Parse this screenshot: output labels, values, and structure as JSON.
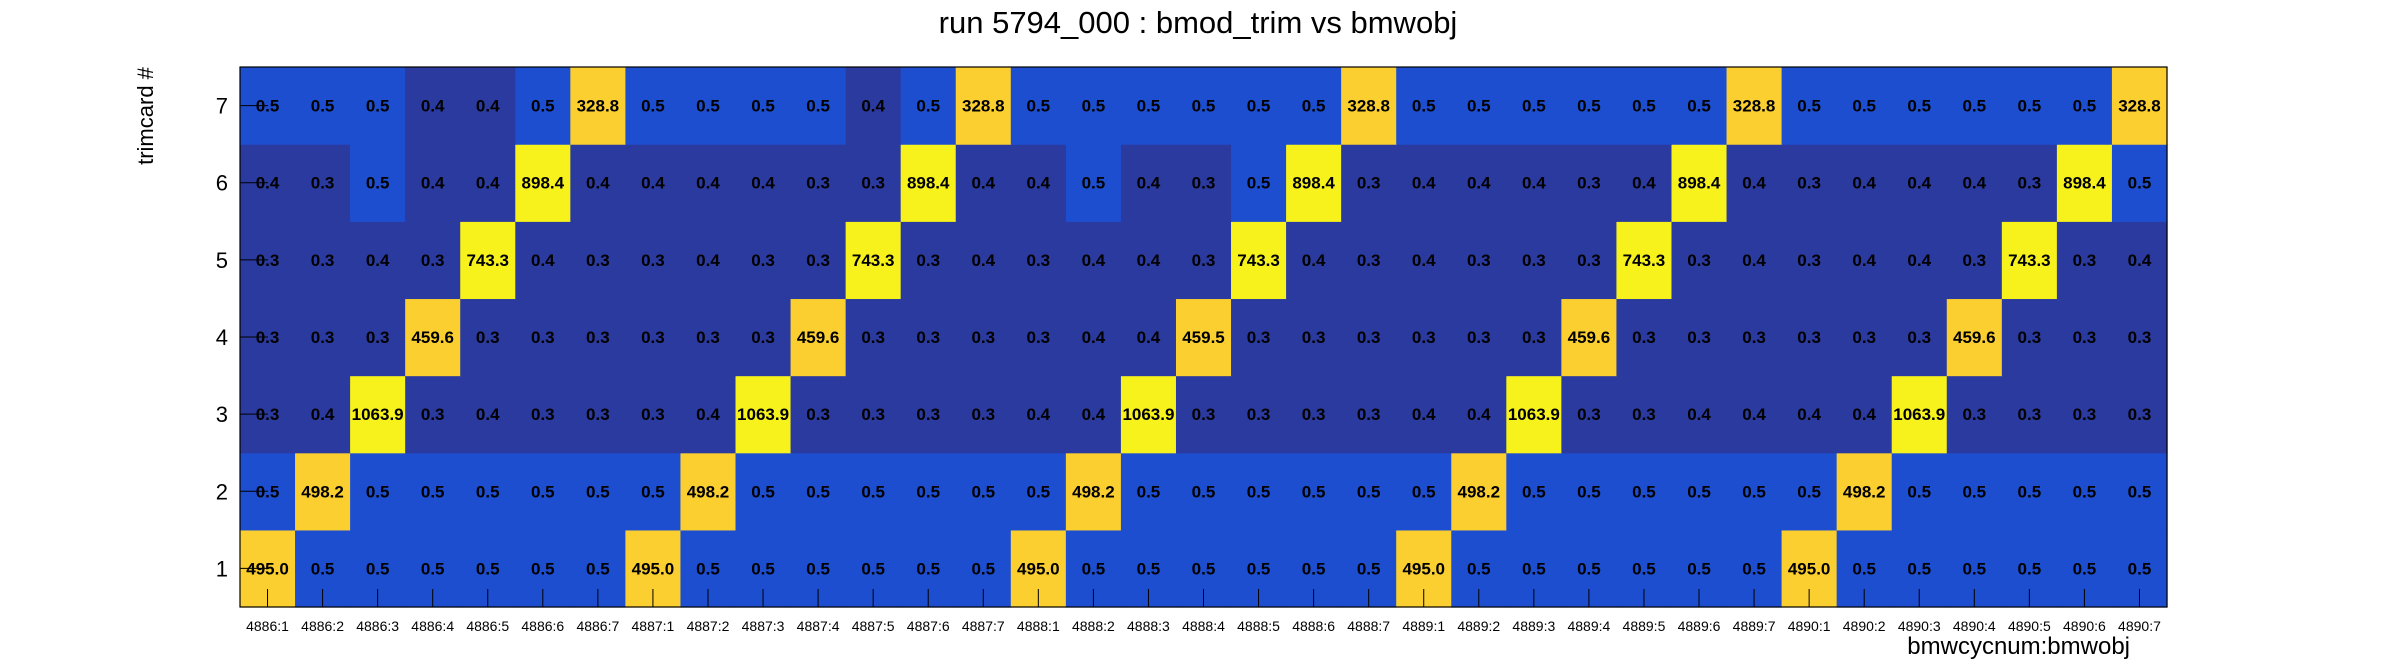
{
  "chart_data": {
    "type": "heatmap",
    "title": "run 5794_000 : bmod_trim vs bmwobj",
    "xlabel": "bmwcycnum:bmwobj",
    "ylabel": "trimcard #",
    "x_categories": [
      "4886:1",
      "4886:2",
      "4886:3",
      "4886:4",
      "4886:5",
      "4886:6",
      "4886:7",
      "4887:1",
      "4887:2",
      "4887:3",
      "4887:4",
      "4887:5",
      "4887:6",
      "4887:7",
      "4888:1",
      "4888:2",
      "4888:3",
      "4888:4",
      "4888:5",
      "4888:6",
      "4888:7",
      "4889:1",
      "4889:2",
      "4889:3",
      "4889:4",
      "4889:5",
      "4889:6",
      "4889:7",
      "4890:1",
      "4890:2",
      "4890:3",
      "4890:4",
      "4890:5",
      "4890:6",
      "4890:7"
    ],
    "y_categories": [
      "1",
      "2",
      "3",
      "4",
      "5",
      "6",
      "7"
    ],
    "values": [
      [
        "495.0",
        "0.5",
        "0.5",
        "0.5",
        "0.5",
        "0.5",
        "0.5",
        "495.0",
        "0.5",
        "0.5",
        "0.5",
        "0.5",
        "0.5",
        "0.5",
        "495.0",
        "0.5",
        "0.5",
        "0.5",
        "0.5",
        "0.5",
        "0.5",
        "495.0",
        "0.5",
        "0.5",
        "0.5",
        "0.5",
        "0.5",
        "0.5",
        "495.0",
        "0.5",
        "0.5",
        "0.5",
        "0.5",
        "0.5",
        "0.5"
      ],
      [
        "0.5",
        "498.2",
        "0.5",
        "0.5",
        "0.5",
        "0.5",
        "0.5",
        "0.5",
        "498.2",
        "0.5",
        "0.5",
        "0.5",
        "0.5",
        "0.5",
        "0.5",
        "498.2",
        "0.5",
        "0.5",
        "0.5",
        "0.5",
        "0.5",
        "0.5",
        "498.2",
        "0.5",
        "0.5",
        "0.5",
        "0.5",
        "0.5",
        "0.5",
        "498.2",
        "0.5",
        "0.5",
        "0.5",
        "0.5",
        "0.5"
      ],
      [
        "0.3",
        "0.4",
        "1063.9",
        "0.3",
        "0.4",
        "0.3",
        "0.3",
        "0.3",
        "0.4",
        "1063.9",
        "0.3",
        "0.3",
        "0.3",
        "0.3",
        "0.4",
        "0.4",
        "1063.9",
        "0.3",
        "0.3",
        "0.3",
        "0.3",
        "0.4",
        "0.4",
        "1063.9",
        "0.3",
        "0.3",
        "0.4",
        "0.4",
        "0.4",
        "0.4",
        "1063.9",
        "0.3",
        "0.3",
        "0.3",
        "0.3"
      ],
      [
        "0.3",
        "0.3",
        "0.3",
        "459.6",
        "0.3",
        "0.3",
        "0.3",
        "0.3",
        "0.3",
        "0.3",
        "459.6",
        "0.3",
        "0.3",
        "0.3",
        "0.3",
        "0.4",
        "0.4",
        "459.5",
        "0.3",
        "0.3",
        "0.3",
        "0.3",
        "0.3",
        "0.3",
        "459.6",
        "0.3",
        "0.3",
        "0.3",
        "0.3",
        "0.3",
        "0.3",
        "459.6",
        "0.3",
        "0.3",
        "0.3"
      ],
      [
        "0.3",
        "0.3",
        "0.4",
        "0.3",
        "743.3",
        "0.4",
        "0.3",
        "0.3",
        "0.4",
        "0.3",
        "0.3",
        "743.3",
        "0.3",
        "0.4",
        "0.3",
        "0.4",
        "0.4",
        "0.3",
        "743.3",
        "0.4",
        "0.3",
        "0.4",
        "0.3",
        "0.3",
        "0.3",
        "743.3",
        "0.3",
        "0.4",
        "0.3",
        "0.4",
        "0.4",
        "0.3",
        "743.3",
        "0.3",
        "0.4"
      ],
      [
        "0.4",
        "0.3",
        "0.5",
        "0.4",
        "0.4",
        "898.4",
        "0.4",
        "0.4",
        "0.4",
        "0.4",
        "0.3",
        "0.3",
        "898.4",
        "0.4",
        "0.4",
        "0.5",
        "0.4",
        "0.3",
        "0.5",
        "898.4",
        "0.3",
        "0.4",
        "0.4",
        "0.4",
        "0.3",
        "0.4",
        "898.4",
        "0.4",
        "0.3",
        "0.4",
        "0.4",
        "0.4",
        "0.3",
        "898.4",
        "0.5"
      ],
      [
        "0.5",
        "0.5",
        "0.5",
        "0.4",
        "0.4",
        "0.5",
        "328.8",
        "0.5",
        "0.5",
        "0.5",
        "0.5",
        "0.4",
        "0.5",
        "328.8",
        "0.5",
        "0.5",
        "0.5",
        "0.5",
        "0.5",
        "0.5",
        "328.8",
        "0.5",
        "0.5",
        "0.5",
        "0.5",
        "0.5",
        "0.5",
        "328.8",
        "0.5",
        "0.5",
        "0.5",
        "0.5",
        "0.5",
        "0.5",
        "328.8"
      ]
    ],
    "colors": {
      "low": "#2a3a9e",
      "mid": "#1d4ed0",
      "high_bright": "#f7f21c",
      "high_warm": "#fbcf30"
    },
    "grid": false
  }
}
